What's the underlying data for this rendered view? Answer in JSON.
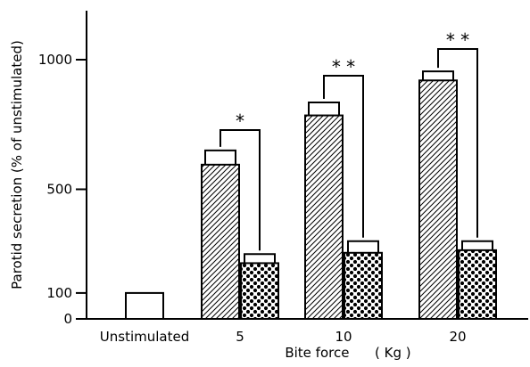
{
  "chart_data": {
    "type": "bar",
    "title": "",
    "xlabel": "Bite force      ( Kg )",
    "ylabel": "Parotid secretion (% of unstimulated)",
    "ylim": [
      0,
      1000
    ],
    "yticks": [
      0,
      100,
      500,
      1000
    ],
    "grid": false,
    "legend": "none",
    "categories": [
      "Unstimulated",
      "5",
      "10",
      "20"
    ],
    "series": [
      {
        "pattern": "white",
        "values": [
          100,
          null,
          null,
          null
        ],
        "errors": [
          0,
          null,
          null,
          null
        ]
      },
      {
        "pattern": "diagonal-hatch",
        "values": [
          null,
          595,
          785,
          920
        ],
        "errors": [
          null,
          55,
          50,
          35
        ]
      },
      {
        "pattern": "dots",
        "values": [
          null,
          215,
          255,
          265
        ],
        "errors": [
          null,
          35,
          45,
          35
        ]
      }
    ],
    "annotations": [
      {
        "category": "5",
        "text": "*"
      },
      {
        "category": "10",
        "text": "* *"
      },
      {
        "category": "20",
        "text": "* *"
      }
    ],
    "colors": {
      "ink": "#000000",
      "fill": "#ffffff"
    }
  }
}
